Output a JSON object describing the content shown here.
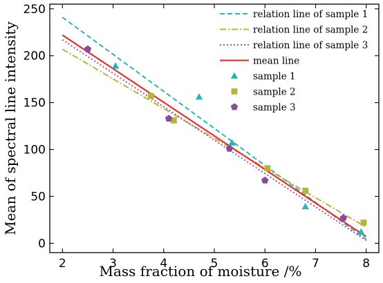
{
  "chart_data": {
    "type": "scatter",
    "xlabel": "Mass fraction of moisture /%",
    "ylabel": "Mean of spectral line intensity",
    "xlim": [
      1.75,
      8.25
    ],
    "ylim": [
      -10,
      255
    ],
    "xticks": [
      2,
      3,
      4,
      5,
      6,
      7,
      8
    ],
    "yticks": [
      0,
      50,
      100,
      150,
      200,
      250
    ],
    "grid": false,
    "legend_position": "top-right",
    "lines": [
      {
        "name": "relation line of sample 1",
        "x": [
          2,
          8
        ],
        "y": [
          241,
          4
        ],
        "color": "#2ab5c0",
        "dash": "dashed"
      },
      {
        "name": "relation line of sample 2",
        "x": [
          2,
          8
        ],
        "y": [
          207,
          17
        ],
        "color": "#b5b53a",
        "dash": "dashdot"
      },
      {
        "name": "relation line of sample 3",
        "x": [
          2,
          8
        ],
        "y": [
          217,
          3
        ],
        "color": "#9b4fb5",
        "dash": "dotted"
      },
      {
        "name": "mean line",
        "x": [
          2,
          8
        ],
        "y": [
          222,
          7
        ],
        "color": "#e8302a",
        "dash": "solid"
      }
    ],
    "series": [
      {
        "name": "sample 1",
        "marker": "triangle",
        "color": "#2ab5b5",
        "x": [
          3.05,
          4.7,
          5.35,
          6.8,
          7.9
        ],
        "y": [
          189,
          156,
          107,
          39,
          12
        ]
      },
      {
        "name": "sample 2",
        "marker": "square",
        "color": "#b5b53a",
        "x": [
          3.75,
          4.2,
          6.05,
          6.8,
          7.95
        ],
        "y": [
          157,
          131,
          80,
          56,
          22
        ]
      },
      {
        "name": "sample 3",
        "marker": "pentagon",
        "color": "#8a4a9e",
        "x": [
          2.5,
          4.1,
          5.3,
          6.0,
          7.55
        ],
        "y": [
          207,
          133,
          101,
          67,
          27
        ]
      }
    ]
  }
}
